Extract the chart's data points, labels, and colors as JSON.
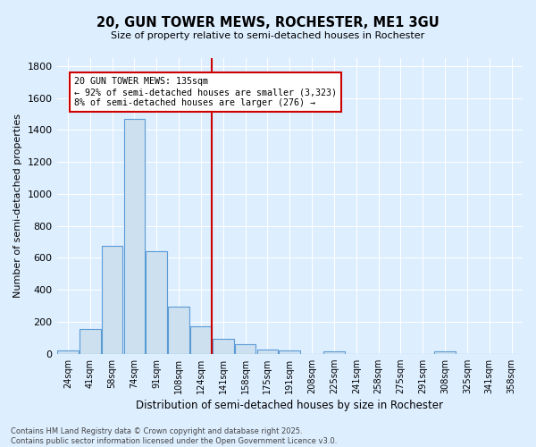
{
  "title1": "20, GUN TOWER MEWS, ROCHESTER, ME1 3GU",
  "title2": "Size of property relative to semi-detached houses in Rochester",
  "xlabel": "Distribution of semi-detached houses by size in Rochester",
  "ylabel": "Number of semi-detached properties",
  "bin_labels": [
    "24sqm",
    "41sqm",
    "58sqm",
    "74sqm",
    "91sqm",
    "108sqm",
    "124sqm",
    "141sqm",
    "158sqm",
    "175sqm",
    "191sqm",
    "208sqm",
    "225sqm",
    "241sqm",
    "258sqm",
    "275sqm",
    "291sqm",
    "308sqm",
    "325sqm",
    "341sqm",
    "358sqm"
  ],
  "bar_heights": [
    20,
    155,
    675,
    1470,
    640,
    295,
    170,
    95,
    60,
    25,
    20,
    0,
    15,
    0,
    0,
    0,
    0,
    15,
    0,
    0,
    0
  ],
  "bar_color": "#cce0f0",
  "bar_edge_color": "#5b9bd5",
  "property_bin_index": 7,
  "property_line_color": "#cc0000",
  "annotation_text": "20 GUN TOWER MEWS: 135sqm\n← 92% of semi-detached houses are smaller (3,323)\n8% of semi-detached houses are larger (276) →",
  "annotation_box_color": "#ffffff",
  "annotation_box_edge": "#cc0000",
  "ylim": [
    0,
    1850
  ],
  "yticks": [
    0,
    200,
    400,
    600,
    800,
    1000,
    1200,
    1400,
    1600,
    1800
  ],
  "background_color": "#ddeeff",
  "grid_color": "#ffffff",
  "footer1": "Contains HM Land Registry data © Crown copyright and database right 2025.",
  "footer2": "Contains public sector information licensed under the Open Government Licence v3.0."
}
